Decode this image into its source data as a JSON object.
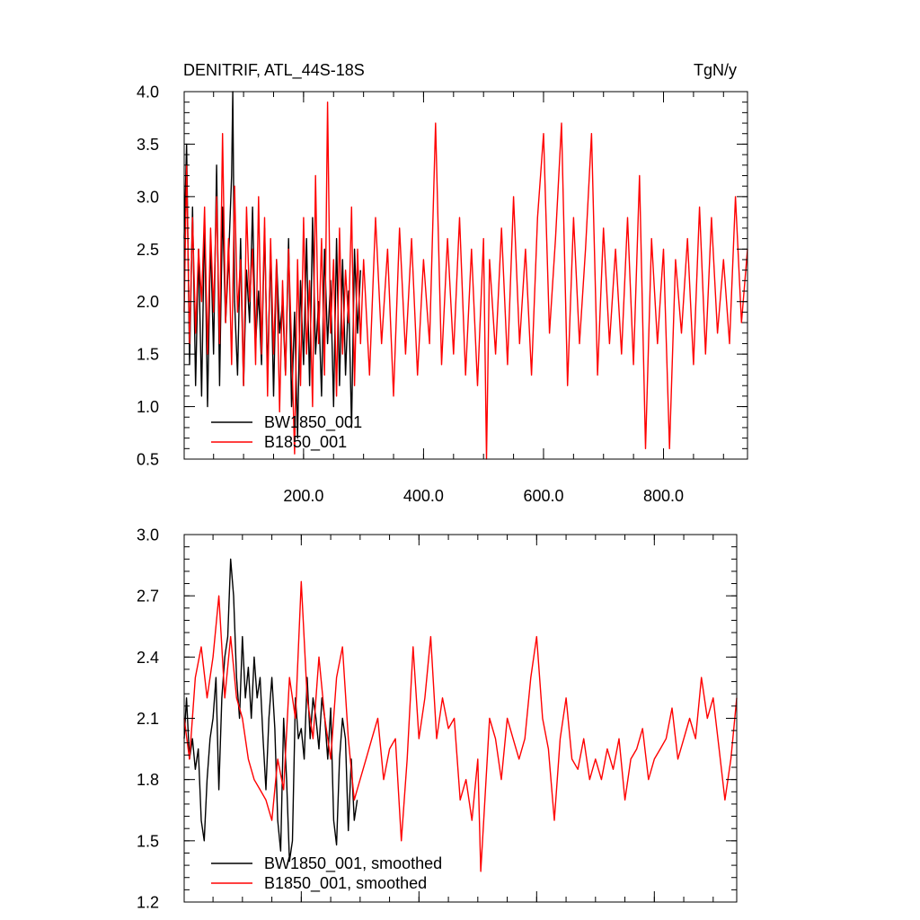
{
  "chart_data": [
    {
      "type": "line",
      "title": "DENITRIF, ATL_44S-18S",
      "units": "TgN/y",
      "xlim": [
        1,
        940
      ],
      "ylim": [
        0.5,
        4.0
      ],
      "xticks": [
        200,
        400,
        600,
        800
      ],
      "xtick_labels": [
        "200.0",
        "400.0",
        "600.0",
        "800.0"
      ],
      "yticks": [
        0.5,
        1.0,
        1.5,
        2.0,
        2.5,
        3.0,
        3.5,
        4.0
      ],
      "ytick_labels": [
        "0.5",
        "1.0",
        "1.5",
        "2.0",
        "2.5",
        "3.0",
        "3.5",
        "4.0"
      ],
      "grid": false,
      "legend_position": "bottom-left",
      "series": [
        {
          "name": "BW1850_001",
          "color": "#000000",
          "x": [
            1,
            5,
            10,
            15,
            20,
            25,
            30,
            35,
            40,
            45,
            50,
            55,
            60,
            65,
            70,
            75,
            80,
            82,
            85,
            90,
            95,
            100,
            105,
            110,
            115,
            120,
            125,
            130,
            135,
            140,
            145,
            150,
            155,
            160,
            165,
            170,
            175,
            180,
            185,
            190,
            195,
            200,
            205,
            210,
            215,
            220,
            225,
            230,
            235,
            240,
            245,
            250,
            255,
            260,
            265,
            270,
            275,
            280,
            285,
            290,
            295
          ],
          "y": [
            2.6,
            3.5,
            1.4,
            2.9,
            1.2,
            2.5,
            1.1,
            2.8,
            1.0,
            2.6,
            1.5,
            3.3,
            1.2,
            2.9,
            1.8,
            2.4,
            3.2,
            4.0,
            2.0,
            1.3,
            2.6,
            1.2,
            2.3,
            1.8,
            2.9,
            1.6,
            2.1,
            1.4,
            2.7,
            1.3,
            2.5,
            1.1,
            2.4,
            1.7,
            2.0,
            1.3,
            2.6,
            1.0,
            1.9,
            0.7,
            2.2,
            1.4,
            2.6,
            1.2,
            2.8,
            1.5,
            2.0,
            1.1,
            2.5,
            1.6,
            2.2,
            1.0,
            2.6,
            1.2,
            2.4,
            1.3,
            2.1,
            0.8,
            2.5,
            1.7,
            2.3
          ]
        },
        {
          "name": "B1850_001",
          "color": "#ff0000",
          "x": [
            1,
            5,
            10,
            15,
            20,
            25,
            30,
            35,
            40,
            45,
            50,
            55,
            60,
            65,
            70,
            75,
            80,
            85,
            90,
            95,
            100,
            105,
            110,
            115,
            120,
            125,
            130,
            135,
            140,
            145,
            150,
            155,
            160,
            165,
            170,
            175,
            180,
            185,
            190,
            195,
            200,
            205,
            210,
            215,
            220,
            225,
            230,
            235,
            240,
            245,
            250,
            255,
            260,
            265,
            270,
            275,
            280,
            285,
            290,
            295,
            300,
            310,
            320,
            330,
            340,
            350,
            360,
            370,
            380,
            390,
            400,
            410,
            420,
            430,
            440,
            450,
            460,
            470,
            480,
            490,
            500,
            505,
            510,
            520,
            530,
            540,
            550,
            560,
            570,
            580,
            590,
            600,
            610,
            620,
            630,
            640,
            650,
            660,
            670,
            680,
            690,
            700,
            710,
            720,
            730,
            740,
            750,
            760,
            770,
            780,
            790,
            800,
            810,
            820,
            830,
            840,
            850,
            860,
            870,
            880,
            890,
            900,
            910,
            920,
            930,
            940
          ],
          "y": [
            1.9,
            3.3,
            1.6,
            2.8,
            1.7,
            2.5,
            2.0,
            2.9,
            1.5,
            2.7,
            1.9,
            3.0,
            1.6,
            3.6,
            1.8,
            2.6,
            1.4,
            3.1,
            1.9,
            2.4,
            1.2,
            2.9,
            2.0,
            2.5,
            1.4,
            3.0,
            1.5,
            2.8,
            1.1,
            2.6,
            1.5,
            2.4,
            0.95,
            2.2,
            1.3,
            2.5,
            1.6,
            0.55,
            2.4,
            1.2,
            2.8,
            1.5,
            2.2,
            1.0,
            3.2,
            1.6,
            2.6,
            1.3,
            3.9,
            1.7,
            2.4,
            1.1,
            2.7,
            1.5,
            2.3,
            1.8,
            2.9,
            1.2,
            2.5,
            1.6,
            2.4,
            1.3,
            2.8,
            1.6,
            2.5,
            1.1,
            2.7,
            1.5,
            2.6,
            1.3,
            2.4,
            1.6,
            3.7,
            1.4,
            2.6,
            1.5,
            2.8,
            1.3,
            2.5,
            1.2,
            2.6,
            0.5,
            2.4,
            1.5,
            2.7,
            1.4,
            3.0,
            1.6,
            2.5,
            1.3,
            2.8,
            3.6,
            1.7,
            2.6,
            3.7,
            1.2,
            2.8,
            1.6,
            2.5,
            3.6,
            1.3,
            2.7,
            1.6,
            2.5,
            1.5,
            2.8,
            1.4,
            3.2,
            0.6,
            2.6,
            1.6,
            2.5,
            0.6,
            2.4,
            1.7,
            2.6,
            1.4,
            2.9,
            1.5,
            2.8,
            1.7,
            2.4,
            1.6,
            3.0,
            1.8,
            2.5
          ]
        }
      ]
    },
    {
      "type": "line",
      "xlim": [
        1,
        940
      ],
      "ylim": [
        1.2,
        3.0
      ],
      "yticks": [
        1.2,
        1.5,
        1.8,
        2.1,
        2.4,
        2.7,
        3.0
      ],
      "ytick_labels": [
        "1.2",
        "1.5",
        "1.8",
        "2.1",
        "2.4",
        "2.7",
        "3.0"
      ],
      "xticks": [
        200,
        400,
        600,
        800
      ],
      "grid": false,
      "legend_position": "bottom-left",
      "series": [
        {
          "name": "BW1850_001, smoothed",
          "color": "#000000",
          "x": [
            1,
            5,
            10,
            15,
            20,
            25,
            30,
            35,
            40,
            45,
            50,
            55,
            60,
            65,
            70,
            75,
            80,
            85,
            90,
            95,
            100,
            105,
            110,
            115,
            120,
            125,
            130,
            135,
            140,
            145,
            150,
            155,
            160,
            165,
            170,
            175,
            180,
            185,
            190,
            195,
            200,
            205,
            210,
            215,
            220,
            225,
            230,
            235,
            240,
            245,
            250,
            255,
            260,
            265,
            270,
            275,
            280,
            285,
            290,
            295
          ],
          "y": [
            2.0,
            2.2,
            1.9,
            2.0,
            1.85,
            1.95,
            1.6,
            1.5,
            1.8,
            2.0,
            2.1,
            2.3,
            1.75,
            2.2,
            2.4,
            2.5,
            2.88,
            2.7,
            2.3,
            2.1,
            2.5,
            2.2,
            2.35,
            2.1,
            2.4,
            2.2,
            2.3,
            2.0,
            1.75,
            2.1,
            2.3,
            2.05,
            1.6,
            1.45,
            2.1,
            1.8,
            1.4,
            1.5,
            2.2,
            2.0,
            2.05,
            1.9,
            2.3,
            2.0,
            2.2,
            2.1,
            1.95,
            2.2,
            2.1,
            1.9,
            2.15,
            1.6,
            1.48,
            1.9,
            2.1,
            2.0,
            1.55,
            1.9,
            1.6,
            1.7
          ]
        },
        {
          "name": "B1850_001, smoothed",
          "color": "#ff0000",
          "x": [
            1,
            10,
            20,
            30,
            40,
            50,
            60,
            70,
            80,
            90,
            100,
            110,
            120,
            130,
            140,
            150,
            160,
            170,
            180,
            190,
            200,
            210,
            220,
            230,
            240,
            250,
            260,
            270,
            280,
            290,
            300,
            310,
            320,
            330,
            340,
            350,
            360,
            370,
            380,
            390,
            400,
            410,
            420,
            430,
            440,
            450,
            460,
            470,
            480,
            490,
            500,
            505,
            510,
            520,
            530,
            540,
            550,
            560,
            570,
            580,
            590,
            600,
            610,
            620,
            630,
            640,
            650,
            660,
            670,
            680,
            690,
            700,
            710,
            720,
            730,
            740,
            750,
            760,
            770,
            780,
            790,
            800,
            810,
            820,
            830,
            840,
            850,
            860,
            870,
            880,
            890,
            900,
            910,
            920,
            930,
            940
          ],
          "y": [
            2.1,
            1.9,
            2.3,
            2.45,
            2.2,
            2.4,
            2.7,
            2.2,
            2.5,
            2.2,
            2.1,
            1.9,
            1.8,
            1.75,
            1.7,
            1.6,
            1.9,
            1.75,
            2.3,
            2.1,
            2.77,
            2.2,
            2.0,
            2.4,
            2.1,
            1.9,
            2.3,
            2.45,
            2.0,
            1.7,
            1.8,
            1.9,
            2.0,
            2.1,
            1.8,
            1.95,
            2.0,
            1.5,
            1.9,
            2.45,
            2.0,
            2.2,
            2.5,
            2.0,
            2.2,
            2.05,
            2.1,
            1.7,
            1.8,
            1.6,
            1.9,
            1.35,
            1.6,
            2.1,
            2.0,
            1.8,
            2.1,
            2.0,
            1.9,
            2.0,
            2.3,
            2.5,
            2.1,
            1.95,
            1.6,
            2.0,
            2.2,
            1.9,
            1.85,
            2.0,
            1.8,
            1.9,
            1.8,
            1.95,
            1.85,
            2.0,
            1.7,
            1.9,
            1.95,
            2.05,
            1.8,
            1.9,
            1.95,
            2.0,
            2.15,
            1.9,
            2.0,
            2.1,
            2.0,
            2.3,
            2.1,
            2.2,
            1.95,
            1.7,
            1.9,
            2.2
          ]
        }
      ]
    }
  ]
}
